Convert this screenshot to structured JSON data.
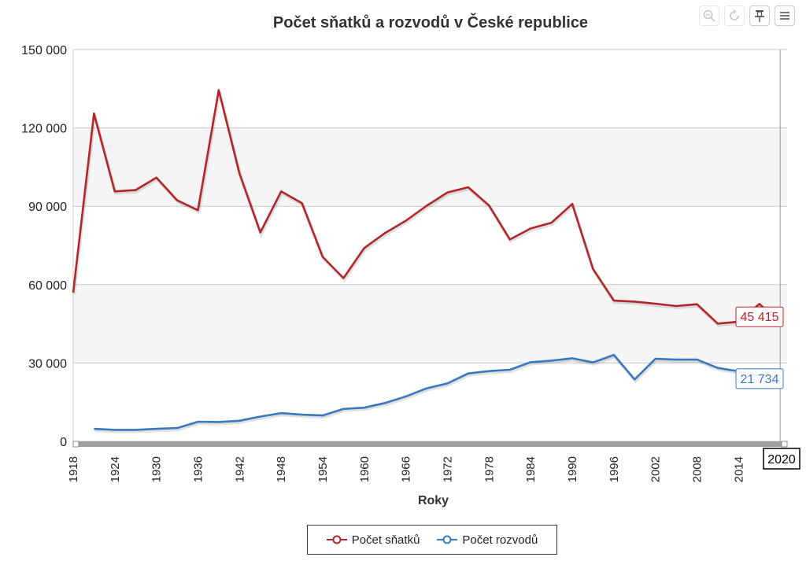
{
  "toolbar": {
    "zoom_icon": "zoom-icon",
    "reset_icon": "reset-zoom-icon",
    "pin_icon": "pin-icon",
    "menu_icon": "menu-icon"
  },
  "colors": {
    "marriages": "#b1272d",
    "divorces": "#3a78c0",
    "band": "#f5f5f5",
    "grid": "#c8c8c8",
    "navigator": "#a0a0a0"
  },
  "chart_data": {
    "type": "line",
    "title": "Počet sňatků a rozvodů v České republice",
    "xlabel": "Roky",
    "ylabel": "",
    "xlim": [
      1918,
      2021
    ],
    "ylim": [
      0,
      150000
    ],
    "x_ticks": [
      1918,
      1924,
      1930,
      1936,
      1942,
      1948,
      1954,
      1960,
      1966,
      1972,
      1978,
      1984,
      1990,
      1996,
      2002,
      2008,
      2014
    ],
    "x_last_tick_partial": "20",
    "y_ticks": [
      0,
      30000,
      60000,
      90000,
      120000,
      150000
    ],
    "y_tick_labels": [
      "0",
      "30 000",
      "60 000",
      "90 000",
      "120 000",
      "150 000"
    ],
    "grid": true,
    "legend_position": "bottom-center",
    "crosshair_label": "2020",
    "series": [
      {
        "name": "Počet sňatků",
        "color": "#b1272d",
        "end_label": "45 415",
        "points": [
          [
            1918,
            57000
          ],
          [
            1921,
            125500
          ],
          [
            1924,
            95700
          ],
          [
            1927,
            96200
          ],
          [
            1930,
            101000
          ],
          [
            1933,
            92300
          ],
          [
            1936,
            88500
          ],
          [
            1939,
            134500
          ],
          [
            1942,
            102500
          ],
          [
            1945,
            80000
          ],
          [
            1948,
            95700
          ],
          [
            1951,
            91200
          ],
          [
            1954,
            70600
          ],
          [
            1957,
            62500
          ],
          [
            1960,
            74000
          ],
          [
            1963,
            79800
          ],
          [
            1966,
            84500
          ],
          [
            1969,
            90200
          ],
          [
            1972,
            95300
          ],
          [
            1975,
            97300
          ],
          [
            1978,
            90300
          ],
          [
            1981,
            77300
          ],
          [
            1984,
            81500
          ],
          [
            1987,
            83700
          ],
          [
            1990,
            90900
          ],
          [
            1993,
            66000
          ],
          [
            1996,
            53900
          ],
          [
            1999,
            53500
          ],
          [
            2002,
            52700
          ],
          [
            2005,
            51800
          ],
          [
            2008,
            52500
          ],
          [
            2011,
            45100
          ],
          [
            2014,
            45800
          ],
          [
            2017,
            52600
          ],
          [
            2020,
            45415
          ]
        ]
      },
      {
        "name": "Počet rozvodů",
        "color": "#3a78c0",
        "end_label": "21 734",
        "points": [
          [
            1921,
            4800
          ],
          [
            1924,
            4400
          ],
          [
            1927,
            4400
          ],
          [
            1930,
            4800
          ],
          [
            1933,
            5100
          ],
          [
            1936,
            7500
          ],
          [
            1939,
            7400
          ],
          [
            1942,
            7900
          ],
          [
            1945,
            9500
          ],
          [
            1948,
            10800
          ],
          [
            1951,
            10200
          ],
          [
            1954,
            9900
          ],
          [
            1957,
            12400
          ],
          [
            1960,
            12900
          ],
          [
            1963,
            14700
          ],
          [
            1966,
            17200
          ],
          [
            1969,
            20300
          ],
          [
            1972,
            22200
          ],
          [
            1975,
            26000
          ],
          [
            1978,
            26900
          ],
          [
            1981,
            27400
          ],
          [
            1984,
            30300
          ],
          [
            1987,
            30900
          ],
          [
            1990,
            31800
          ],
          [
            1993,
            30200
          ],
          [
            1996,
            33100
          ],
          [
            1999,
            23700
          ],
          [
            2002,
            31600
          ],
          [
            2005,
            31300
          ],
          [
            2008,
            31300
          ],
          [
            2011,
            28100
          ],
          [
            2014,
            26800
          ],
          [
            2017,
            25000
          ],
          [
            2020,
            21734
          ]
        ]
      }
    ]
  }
}
